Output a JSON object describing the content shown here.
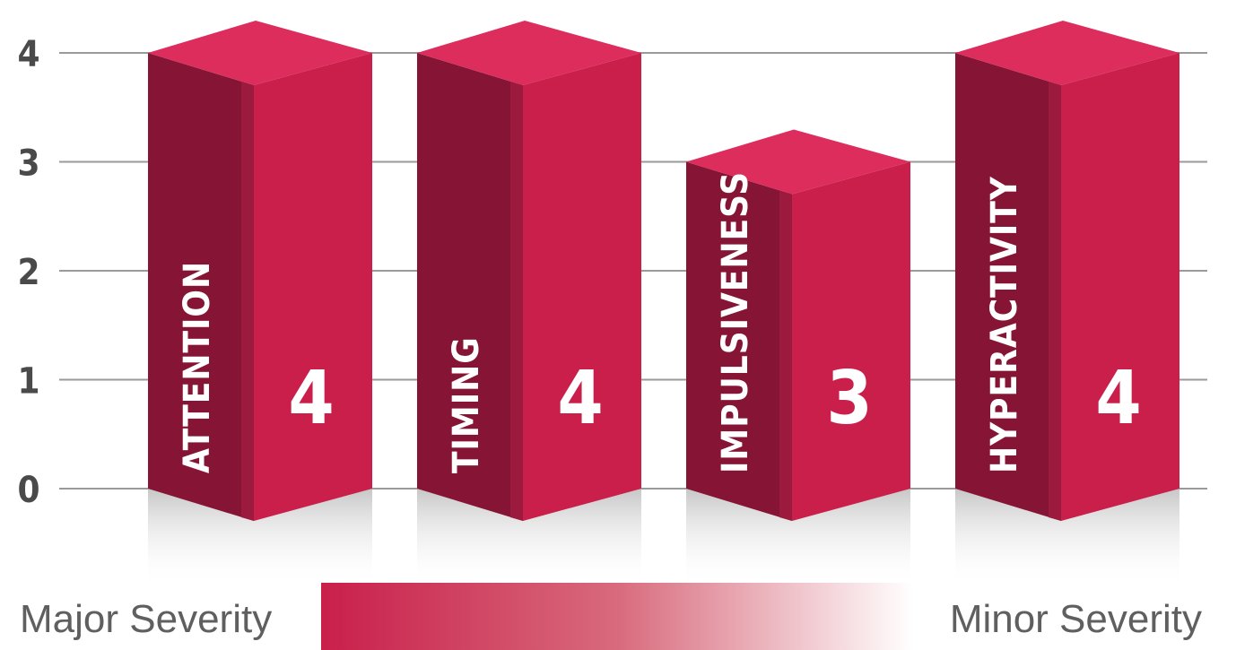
{
  "chart_data": {
    "type": "bar",
    "categories": [
      "ATTENTION",
      "TIMING",
      "IMPULSIVENESS",
      "HYPERACTIVITY"
    ],
    "values": [
      4,
      4,
      3,
      4
    ],
    "yticks": [
      "0",
      "1",
      "2",
      "3",
      "4"
    ],
    "ylim": [
      0,
      4
    ],
    "grid": true,
    "title": "",
    "xlabel": "",
    "ylabel": "",
    "bar_style": "3d",
    "colors": {
      "front": "#c91f4a",
      "side": "#861535",
      "side_edge": "#9b1a3d",
      "top": "#dc2d5d",
      "grid": "#9a9a9a"
    },
    "severity_scale": {
      "left_label": "Major Severity",
      "right_label": "Minor Severity",
      "gradient_start": "#c91f4a",
      "gradient_end": "#ffffff"
    }
  }
}
